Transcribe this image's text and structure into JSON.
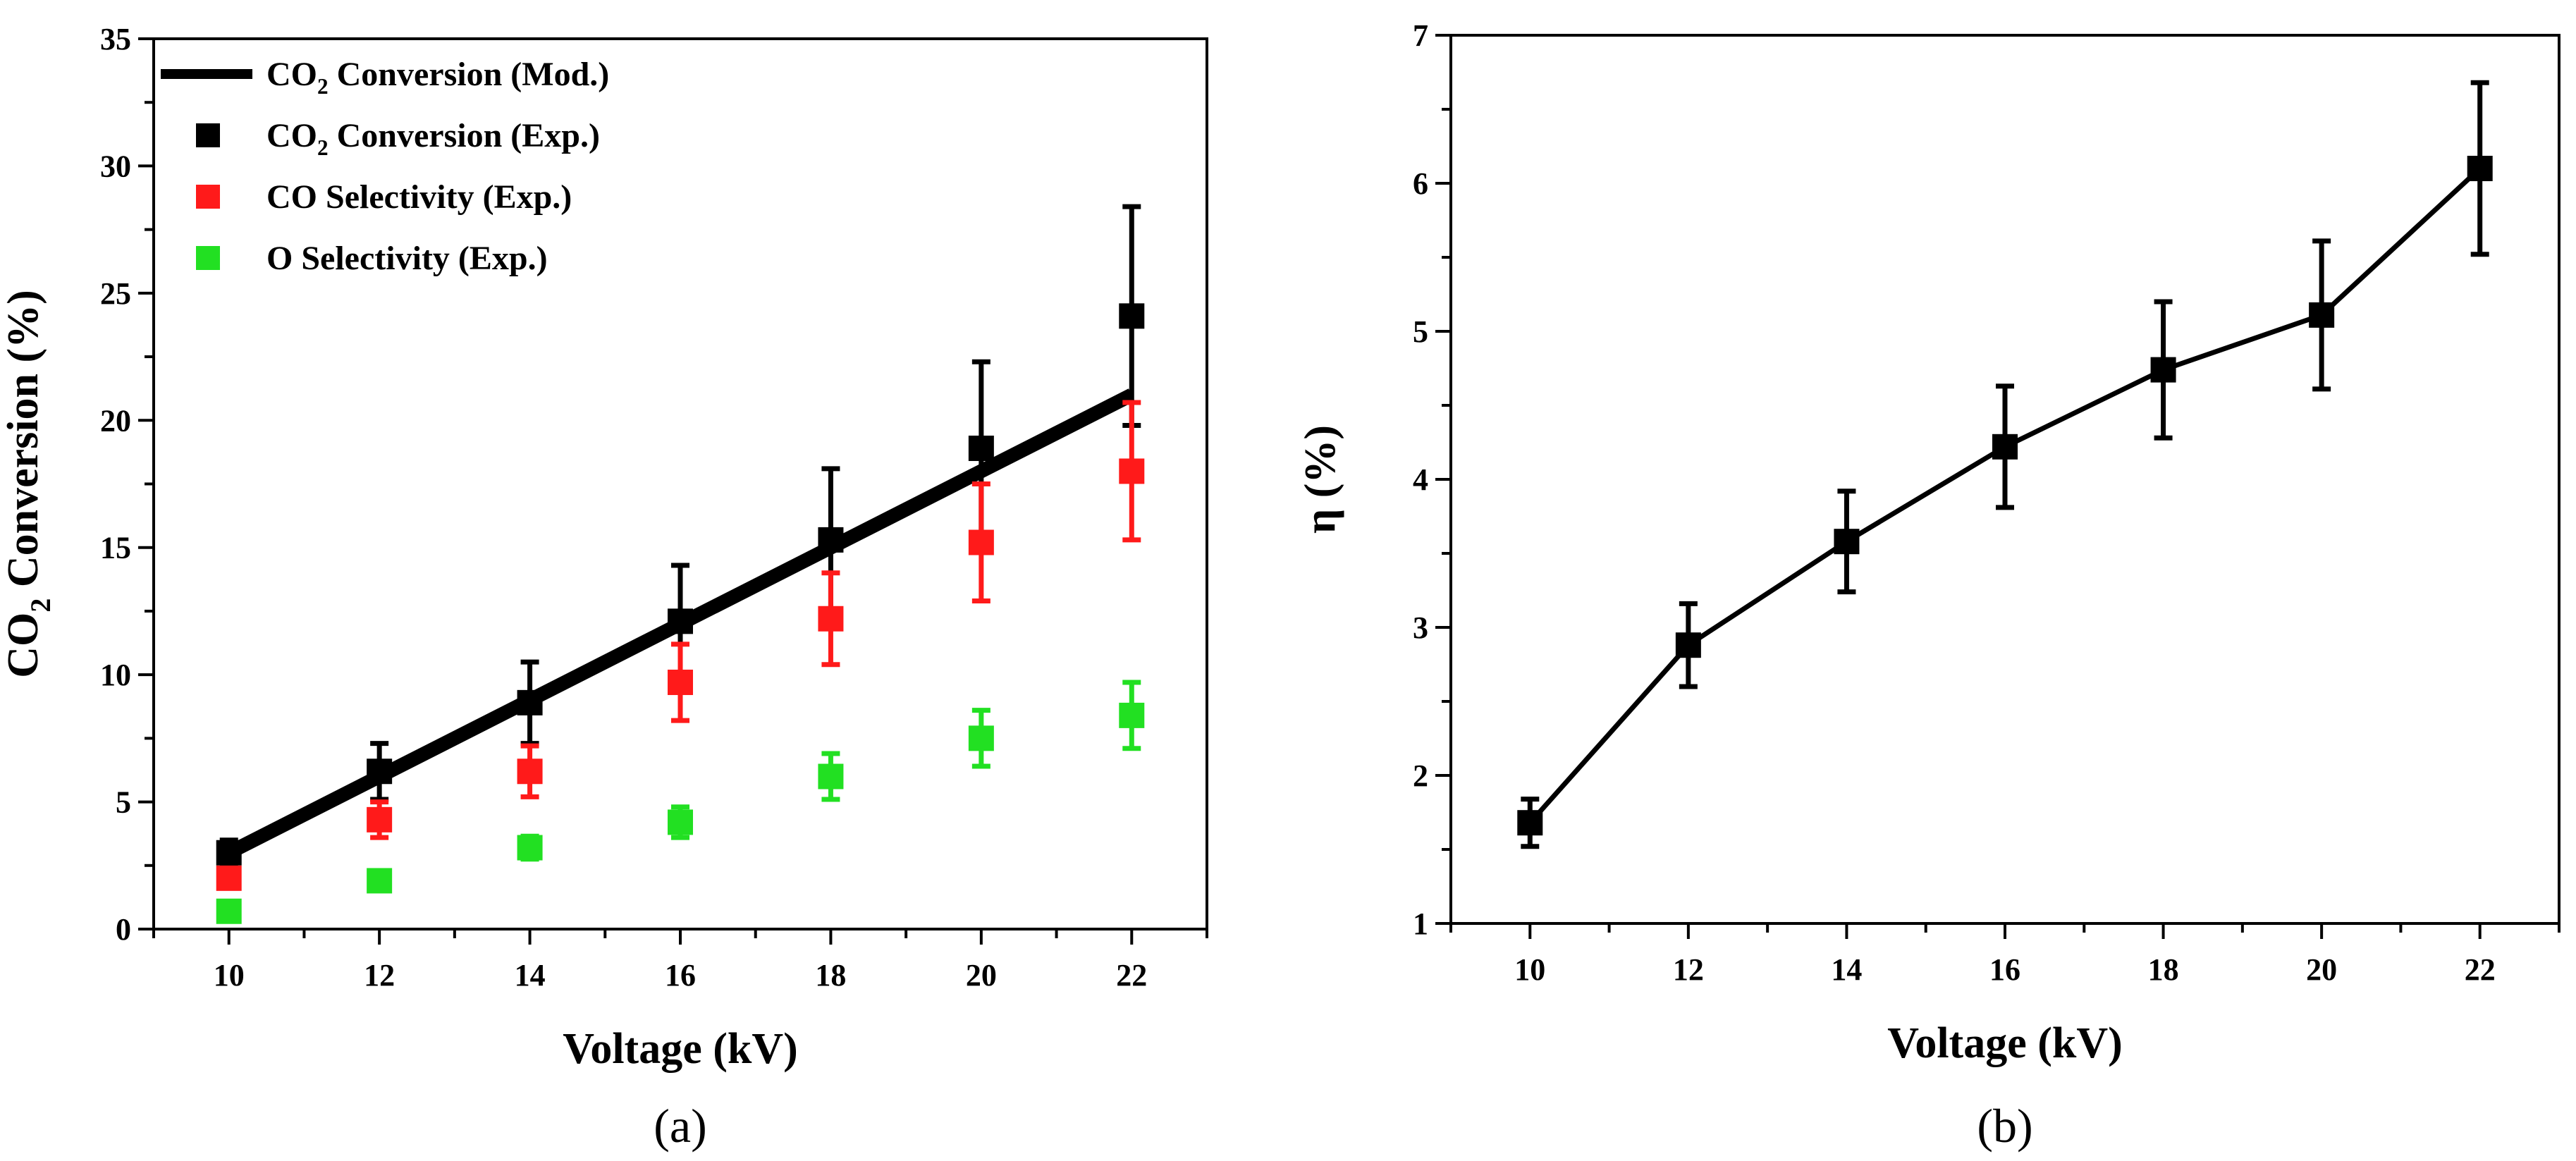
{
  "chart_data": [
    {
      "id": "a",
      "type": "scatter",
      "panel_label": "(a)",
      "xlabel": "Voltage (kV)",
      "ylabel_parts": [
        "CO",
        "2",
        " Conversion (%)"
      ],
      "xlim": [
        9,
        23
      ],
      "ylim": [
        0,
        35
      ],
      "x_ticks": [
        10,
        12,
        14,
        16,
        18,
        20,
        22
      ],
      "y_ticks": [
        0,
        5,
        10,
        15,
        20,
        25,
        30,
        35
      ],
      "legend_position": "top-left",
      "series": [
        {
          "name": "CO2 Conversion (Mod.)",
          "legend_parts": [
            "CO",
            "2",
            " Conversion (Mod.)"
          ],
          "kind": "line",
          "color": "#000000",
          "x": [
            10,
            22
          ],
          "y": [
            3,
            21
          ]
        },
        {
          "name": "CO2 Conversion (Exp.)",
          "legend_parts": [
            "CO",
            "2",
            " Conversion (Exp.)"
          ],
          "kind": "marker",
          "color": "#000000",
          "x": [
            10,
            12,
            14,
            16,
            18,
            20,
            22
          ],
          "y": [
            3.0,
            6.2,
            8.9,
            12.1,
            15.3,
            18.9,
            24.1
          ],
          "err": [
            0.5,
            1.1,
            1.6,
            2.2,
            2.8,
            3.4,
            4.3
          ]
        },
        {
          "name": "CO Selectivity (Exp.)",
          "legend_parts": [
            "CO Selectivity (Exp.)"
          ],
          "kind": "marker",
          "color": "#ff1a1a",
          "x": [
            10,
            12,
            14,
            16,
            18,
            20,
            22
          ],
          "y": [
            2.0,
            4.3,
            6.2,
            9.7,
            12.2,
            15.2,
            18.0
          ],
          "err": [
            0.3,
            0.7,
            1.0,
            1.5,
            1.8,
            2.3,
            2.7
          ]
        },
        {
          "name": "O Selectivity (Exp.)",
          "legend_parts": [
            "O Selectivity (Exp.)"
          ],
          "kind": "marker",
          "color": "#22e022",
          "x": [
            10,
            12,
            14,
            16,
            18,
            20,
            22
          ],
          "y": [
            0.7,
            1.9,
            3.2,
            4.2,
            6.0,
            7.5,
            8.4
          ],
          "err": [
            0.1,
            0.25,
            0.45,
            0.6,
            0.9,
            1.1,
            1.3
          ]
        }
      ]
    },
    {
      "id": "b",
      "type": "line",
      "panel_label": "(b)",
      "xlabel": "Voltage (kV)",
      "ylabel_parts": [
        "η (%)"
      ],
      "xlim": [
        9,
        23
      ],
      "ylim": [
        1,
        7
      ],
      "x_ticks": [
        10,
        12,
        14,
        16,
        18,
        20,
        22
      ],
      "y_ticks": [
        1,
        2,
        3,
        4,
        5,
        6,
        7
      ],
      "series": [
        {
          "name": "η",
          "kind": "line-marker",
          "color": "#000000",
          "x": [
            10,
            12,
            14,
            16,
            18,
            20,
            22
          ],
          "y": [
            1.68,
            2.88,
            3.58,
            4.22,
            4.74,
            5.11,
            6.1
          ],
          "err": [
            0.16,
            0.28,
            0.34,
            0.41,
            0.46,
            0.5,
            0.58
          ]
        }
      ]
    }
  ]
}
